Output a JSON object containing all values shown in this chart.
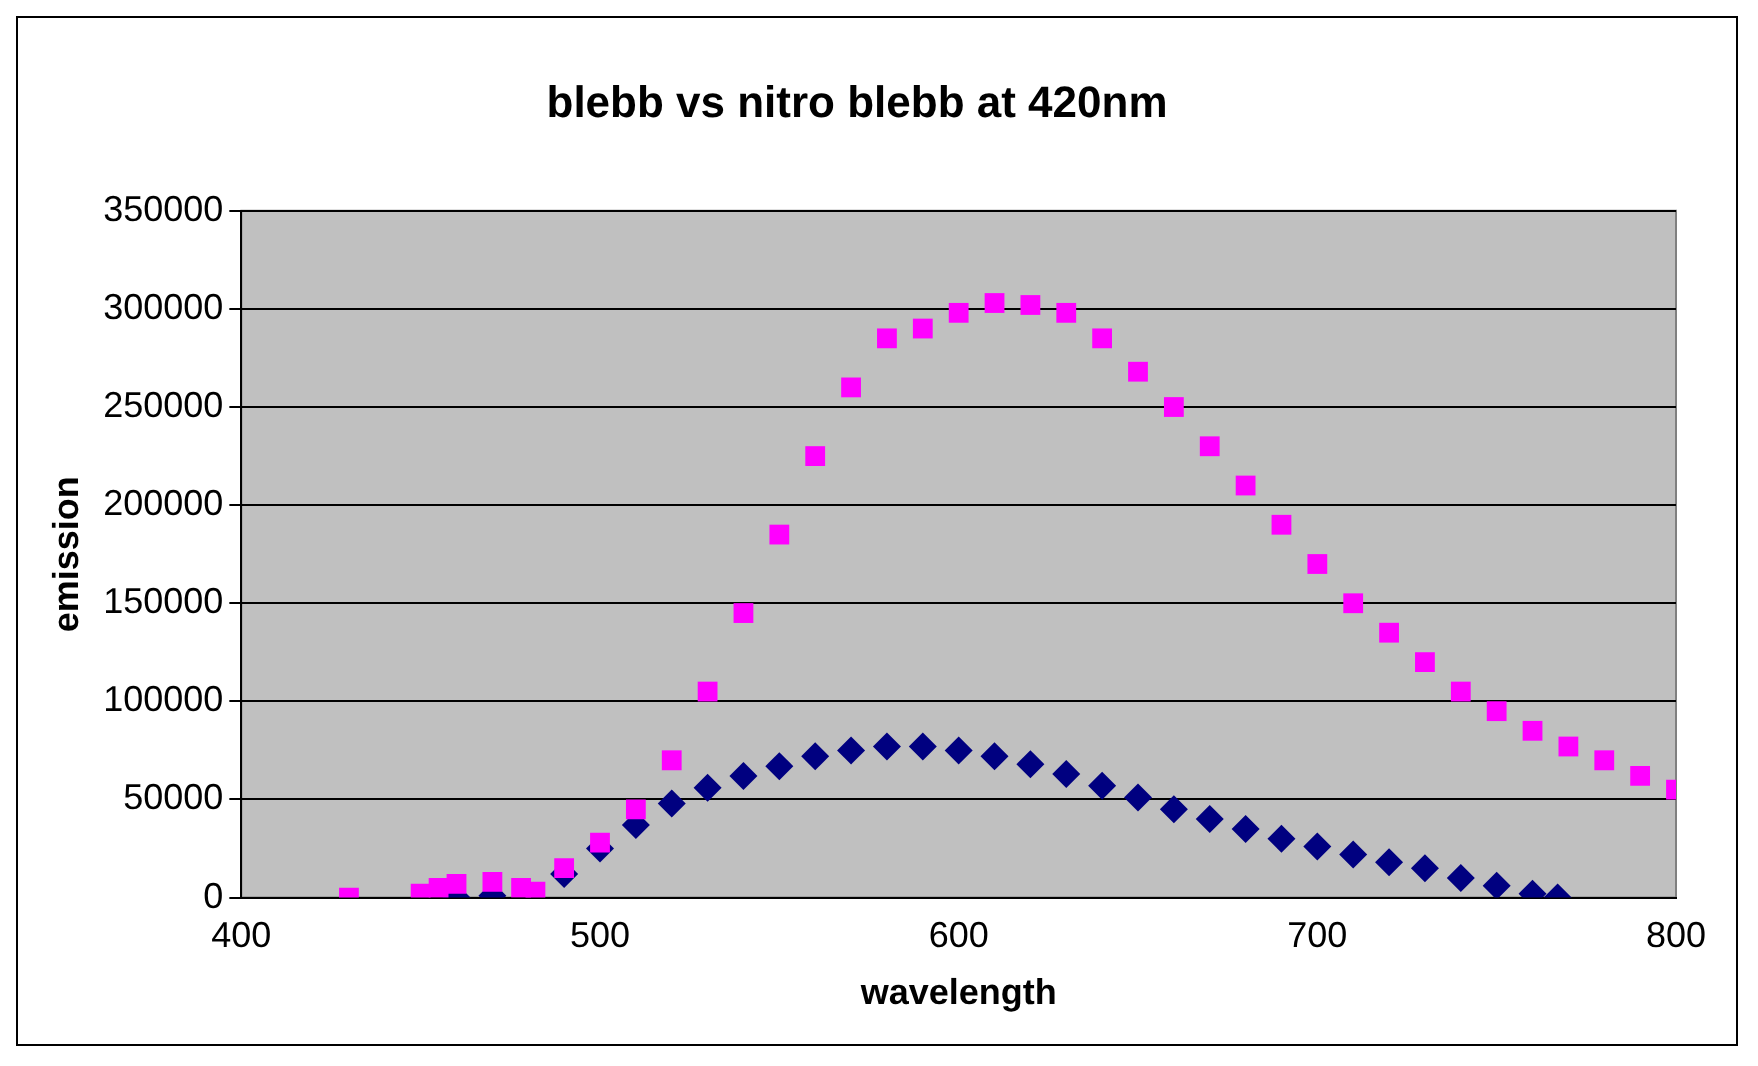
{
  "chart_data": {
    "type": "scatter",
    "title": "blebb vs nitro blebb at 420nm",
    "xlabel": "wavelength",
    "ylabel": "emission",
    "xlim": [
      400,
      800
    ],
    "xticks": [
      400,
      500,
      600,
      700,
      800
    ],
    "ylim": [
      0,
      350000
    ],
    "yticks": [
      0,
      50000,
      100000,
      150000,
      200000,
      250000,
      300000,
      350000
    ],
    "grid": "y",
    "legend": false,
    "series": [
      {
        "color": "#000080",
        "marker": "diamond",
        "x": [
          460,
          470,
          480,
          490,
          500,
          510,
          520,
          530,
          540,
          550,
          560,
          570,
          580,
          590,
          600,
          610,
          620,
          630,
          640,
          650,
          660,
          670,
          680,
          690,
          700,
          710,
          720,
          730,
          740,
          750,
          760,
          767
        ],
        "values": [
          0,
          1000,
          null,
          12000,
          25000,
          37000,
          48000,
          56000,
          62000,
          67000,
          72000,
          75000,
          77000,
          77000,
          75000,
          72000,
          68000,
          63000,
          57000,
          51000,
          45000,
          40000,
          35000,
          30000,
          26000,
          22000,
          18000,
          15000,
          10000,
          6000,
          2000,
          0
        ]
      },
      {
        "color": "#ff00ff",
        "marker": "square",
        "x": [
          430,
          450,
          455,
          460,
          470,
          478,
          482,
          490,
          500,
          510,
          520,
          530,
          540,
          550,
          560,
          570,
          580,
          590,
          600,
          610,
          620,
          630,
          640,
          650,
          660,
          670,
          680,
          690,
          700,
          710,
          720,
          730,
          740,
          750,
          760,
          770,
          780,
          790,
          800
        ],
        "values": [
          0,
          2000,
          5000,
          7000,
          8000,
          5000,
          3000,
          15000,
          28000,
          45000,
          70000,
          105000,
          145000,
          185000,
          225000,
          260000,
          285000,
          290000,
          298000,
          303000,
          302000,
          298000,
          285000,
          268000,
          250000,
          230000,
          210000,
          190000,
          170000,
          150000,
          135000,
          120000,
          105000,
          95000,
          85000,
          77000,
          70000,
          62000,
          55000
        ]
      }
    ]
  }
}
